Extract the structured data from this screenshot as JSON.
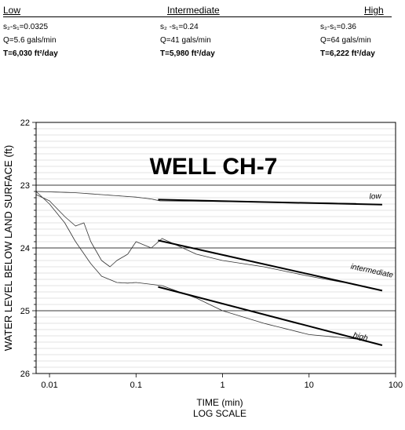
{
  "header": {
    "low_label": "Low",
    "intermediate_label": "Intermediate",
    "high_label": "High"
  },
  "summary": {
    "low": {
      "ds": "s₂-s₁=0.0325",
      "q": "Q=5.6 gals/min",
      "t": "T=6,030 ft²/day"
    },
    "intermediate": {
      "ds": "s₂ -s₁=0.24",
      "q": "Q=41 gals/min",
      "t": "T=5,980 ft²/day"
    },
    "high": {
      "ds": "s₂-s₁=0.36",
      "q": "Q=64 gals/min",
      "t": "T=6,222 ft²/day"
    }
  },
  "chart_data": {
    "type": "line",
    "title": "WELL CH-7",
    "xlabel": "TIME (min)",
    "xlabel2": "LOG SCALE",
    "ylabel": "WATER LEVEL BELOW LAND SURFACE (ft)",
    "x_scale": "log",
    "xlim": [
      0.007,
      100
    ],
    "ylim": [
      22,
      26
    ],
    "y_inverted": true,
    "x_ticks": [
      0.01,
      0.1,
      1,
      10,
      100
    ],
    "x_tick_labels": [
      "0.01",
      "0.1",
      "1",
      "10",
      "100"
    ],
    "y_ticks": [
      22,
      23,
      24,
      25,
      26
    ],
    "y_tick_labels": [
      "22",
      "23",
      "24",
      "25",
      "26"
    ],
    "grid": true,
    "series": [
      {
        "name": "low",
        "x": [
          0.007,
          0.02,
          0.05,
          0.1,
          0.15,
          0.19,
          1,
          10,
          35
        ],
        "y": [
          23.1,
          23.12,
          23.16,
          23.19,
          23.22,
          23.25,
          23.26,
          23.28,
          23.29
        ]
      },
      {
        "name": "intermediate",
        "x": [
          0.007,
          0.01,
          0.015,
          0.02,
          0.025,
          0.03,
          0.04,
          0.05,
          0.06,
          0.08,
          0.1,
          0.15,
          0.2,
          0.5,
          1,
          3,
          10,
          25
        ],
        "y": [
          23.15,
          23.25,
          23.5,
          23.65,
          23.6,
          23.9,
          24.2,
          24.3,
          24.2,
          24.1,
          23.9,
          24.0,
          23.85,
          24.1,
          24.2,
          24.3,
          24.45,
          24.55
        ]
      },
      {
        "name": "high",
        "x": [
          0.007,
          0.01,
          0.015,
          0.02,
          0.03,
          0.04,
          0.06,
          0.08,
          0.1,
          0.2,
          0.5,
          1,
          3,
          10,
          35
        ],
        "y": [
          23.1,
          23.3,
          23.6,
          23.9,
          24.25,
          24.45,
          24.55,
          24.56,
          24.55,
          24.6,
          24.8,
          25.0,
          25.2,
          25.38,
          25.45
        ]
      }
    ],
    "fit_lines": [
      {
        "name": "low",
        "x": [
          0.18,
          70
        ],
        "y": [
          23.23,
          23.31
        ]
      },
      {
        "name": "intermediate",
        "x": [
          0.18,
          70
        ],
        "y": [
          23.88,
          24.68
        ]
      },
      {
        "name": "high",
        "x": [
          0.18,
          70
        ],
        "y": [
          24.62,
          25.55
        ]
      }
    ],
    "annotations": [
      {
        "text": "low",
        "series": "low",
        "x": 50,
        "y": 23.22,
        "rotate": -3
      },
      {
        "text": "intermediate",
        "series": "intermediate",
        "x": 30,
        "y": 24.33,
        "rotate": 12
      },
      {
        "text": "high",
        "series": "high",
        "x": 32,
        "y": 25.42,
        "rotate": 14
      }
    ]
  }
}
